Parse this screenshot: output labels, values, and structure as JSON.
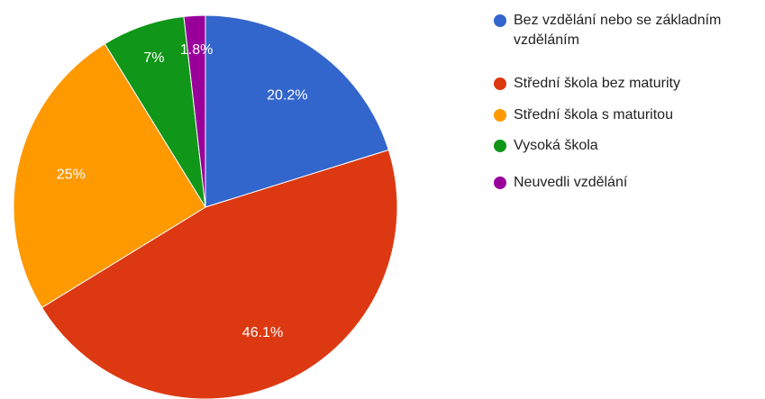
{
  "chart_data": {
    "type": "pie",
    "categories": [
      "Bez vzdělání nebo se základním vzděláním",
      "Střední škola bez maturity",
      "Střední škola s maturitou",
      "Vysoká škola",
      "Neuvedli vzdělání"
    ],
    "values": [
      20.2,
      46.1,
      25,
      7,
      1.8
    ],
    "value_labels": [
      "20.2%",
      "46.1%",
      "25%",
      "7%",
      "1.8%"
    ],
    "colors": [
      "#3366cc",
      "#dc3912",
      "#ff9900",
      "#109618",
      "#990099"
    ],
    "legend": "right"
  }
}
